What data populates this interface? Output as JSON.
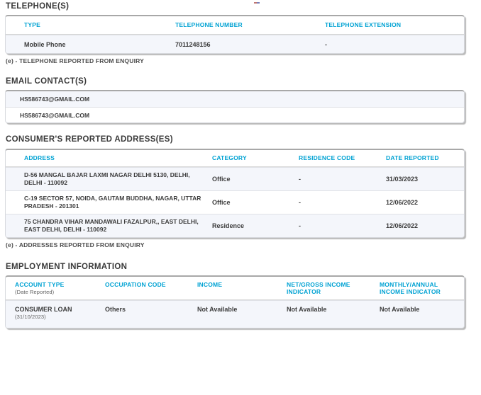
{
  "accent_color": "#00a2d3",
  "shade_color": "#f4f6fb",
  "sections": {
    "telephones": {
      "title": "TELEPHONE(S)",
      "columns": [
        "TYPE",
        "TELEPHONE NUMBER",
        "TELEPHONE EXTENSION"
      ],
      "rows": [
        {
          "type": "Mobile Phone",
          "number": "7011248156",
          "extension": "-"
        }
      ],
      "note": "(e) - TELEPHONE REPORTED FROM ENQUIRY"
    },
    "emails": {
      "title": "EMAIL CONTACT(S)",
      "rows": [
        "HS586743@GMAIL.COM",
        "HS586743@GMAIL.COM"
      ]
    },
    "addresses": {
      "title": "CONSUMER'S REPORTED ADDRESS(ES)",
      "columns": [
        "ADDRESS",
        "CATEGORY",
        "RESIDENCE CODE",
        "DATE REPORTED"
      ],
      "rows": [
        {
          "address": "D-56 MANGAL BAJAR LAXMI NAGAR DELHI 5130, DELHI, DELHI - 110092",
          "category": "Office",
          "residence_code": "-",
          "date_reported": "31/03/2023"
        },
        {
          "address": "C-19 SECTOR 57, NOIDA, GAUTAM BUDDHA, NAGAR, UTTAR PRADESH - 201301",
          "category": "Office",
          "residence_code": "-",
          "date_reported": "12/06/2022"
        },
        {
          "address": "75 CHANDRA VIHAR MANDAWALI FAZALPUR,, EAST DELHI, EAST DELHI, DELHI - 110092",
          "category": "Residence",
          "residence_code": "-",
          "date_reported": "12/06/2022"
        }
      ],
      "note": "(e) - ADDRESSES REPORTED FROM ENQUIRY"
    },
    "employment": {
      "title": "EMPLOYMENT INFORMATION",
      "columns": [
        "ACCOUNT TYPE",
        "OCCUPATION CODE",
        "INCOME",
        "NET/GROSS INCOME INDICATOR",
        "MONTHLY/ANNUAL INCOME INDICATOR"
      ],
      "account_type_subnote": "(Date Reported)",
      "rows": [
        {
          "account_type": "CONSUMER LOAN",
          "account_date": "(31/10/2023)",
          "occupation_code": "Others",
          "income": "Not Available",
          "net_gross_indicator": "Not Available",
          "monthly_annual_indicator": "Not Available"
        }
      ]
    }
  }
}
